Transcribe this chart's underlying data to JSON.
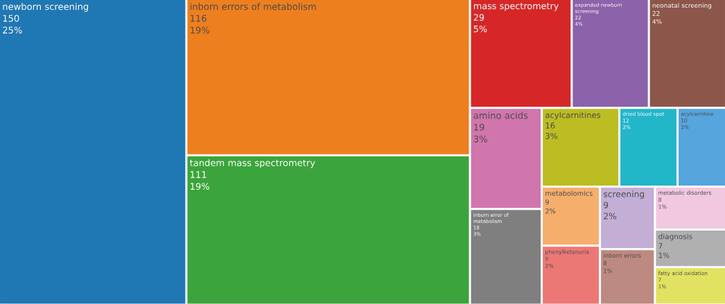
{
  "chart_data": {
    "type": "other",
    "categories": [
      "newborn screening",
      "inborn errors of metabolism",
      "tandem mass spectrometry",
      "mass spectrometry",
      "expanded newborn screening",
      "neonatal screening",
      "amino acids",
      "inborn error of metabolism",
      "acylcarnitines",
      "dried blood spot",
      "acylcarnitine",
      "metabolomics",
      "phenylketonuria",
      "screening",
      "inborn errors",
      "metabolic disorders",
      "diagnosis",
      "fatty acid oxidation"
    ],
    "values": [
      150,
      116,
      111,
      29,
      22,
      22,
      19,
      18,
      16,
      12,
      10,
      9,
      9,
      9,
      8,
      8,
      7,
      7
    ],
    "value_labels": [
      "150",
      "116",
      "111",
      "29",
      "22",
      "22",
      "19",
      "18",
      "16",
      "12",
      "10",
      "9",
      "9",
      "9",
      "8",
      "8",
      "7",
      "7"
    ],
    "annotations": [
      {
        "text": "25%",
        "x": "newborn screening"
      },
      {
        "text": "19%",
        "x": "inborn errors of metabolism"
      },
      {
        "text": "19%",
        "x": "tandem mass spectrometry"
      },
      {
        "text": "5%",
        "x": "mass spectrometry"
      },
      {
        "text": "4%",
        "x": "expanded newborn screening"
      },
      {
        "text": "4%",
        "x": "neonatal screening"
      },
      {
        "text": "3%",
        "x": "amino acids"
      },
      {
        "text": "3%",
        "x": "inborn error of metabolism"
      },
      {
        "text": "3%",
        "x": "acylcarnitines"
      },
      {
        "text": "2%",
        "x": "dried blood spot"
      },
      {
        "text": "2%",
        "x": "acylcarnitine"
      },
      {
        "text": "2%",
        "x": "metabolomics"
      },
      {
        "text": "2%",
        "x": "phenylketonuria"
      },
      {
        "text": "2%",
        "x": "screening"
      },
      {
        "text": "1%",
        "x": "inborn errors"
      },
      {
        "text": "1%",
        "x": "metabolic disorders"
      },
      {
        "text": "1%",
        "x": "diagnosis"
      },
      {
        "text": "1%",
        "x": "fatty acid oxidation"
      }
    ],
    "colors": [
      "#1f77b4",
      "#ee7f1e",
      "#3ca43c",
      "#d62728",
      "#8c62aa",
      "#8c564b",
      "#d175ad",
      "#7f7f7f",
      "#bcbd22",
      "#22b6c9",
      "#57a5dd",
      "#f6ae6c",
      "#ec7876",
      "#c3aed6",
      "#bc8a80",
      "#f2c8e0",
      "#b0b0b0",
      "#e2e262"
    ]
  }
}
